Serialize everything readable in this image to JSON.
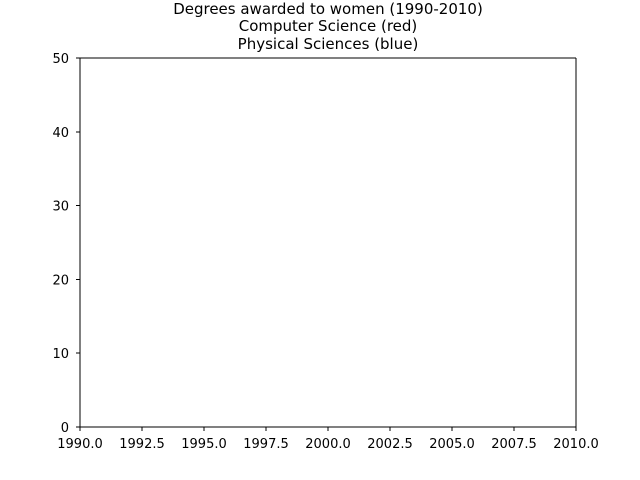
{
  "chart_data": {
    "type": "line",
    "title": "Degrees awarded to women (1990-2010)\nComputer Science (red)\nPhysical Sciences (blue)",
    "title_lines": [
      "Degrees awarded to women (1990-2010)",
      "Computer Science (red)",
      "Physical Sciences (blue)"
    ],
    "xlabel": "",
    "ylabel": "",
    "xlim": [
      1990,
      2010
    ],
    "ylim": [
      0,
      50
    ],
    "xticks": [
      1990.0,
      1992.5,
      1995.0,
      1997.5,
      2000.0,
      2002.5,
      2005.0,
      2007.5,
      2010.0
    ],
    "xtick_labels": [
      "1990.0",
      "1992.5",
      "1995.0",
      "1997.5",
      "2000.0",
      "2002.5",
      "2005.0",
      "2007.5",
      "2010.0"
    ],
    "yticks": [
      0,
      10,
      20,
      30,
      40,
      50
    ],
    "ytick_labels": [
      "0",
      "10",
      "20",
      "30",
      "40",
      "50"
    ],
    "grid": false,
    "series": []
  }
}
